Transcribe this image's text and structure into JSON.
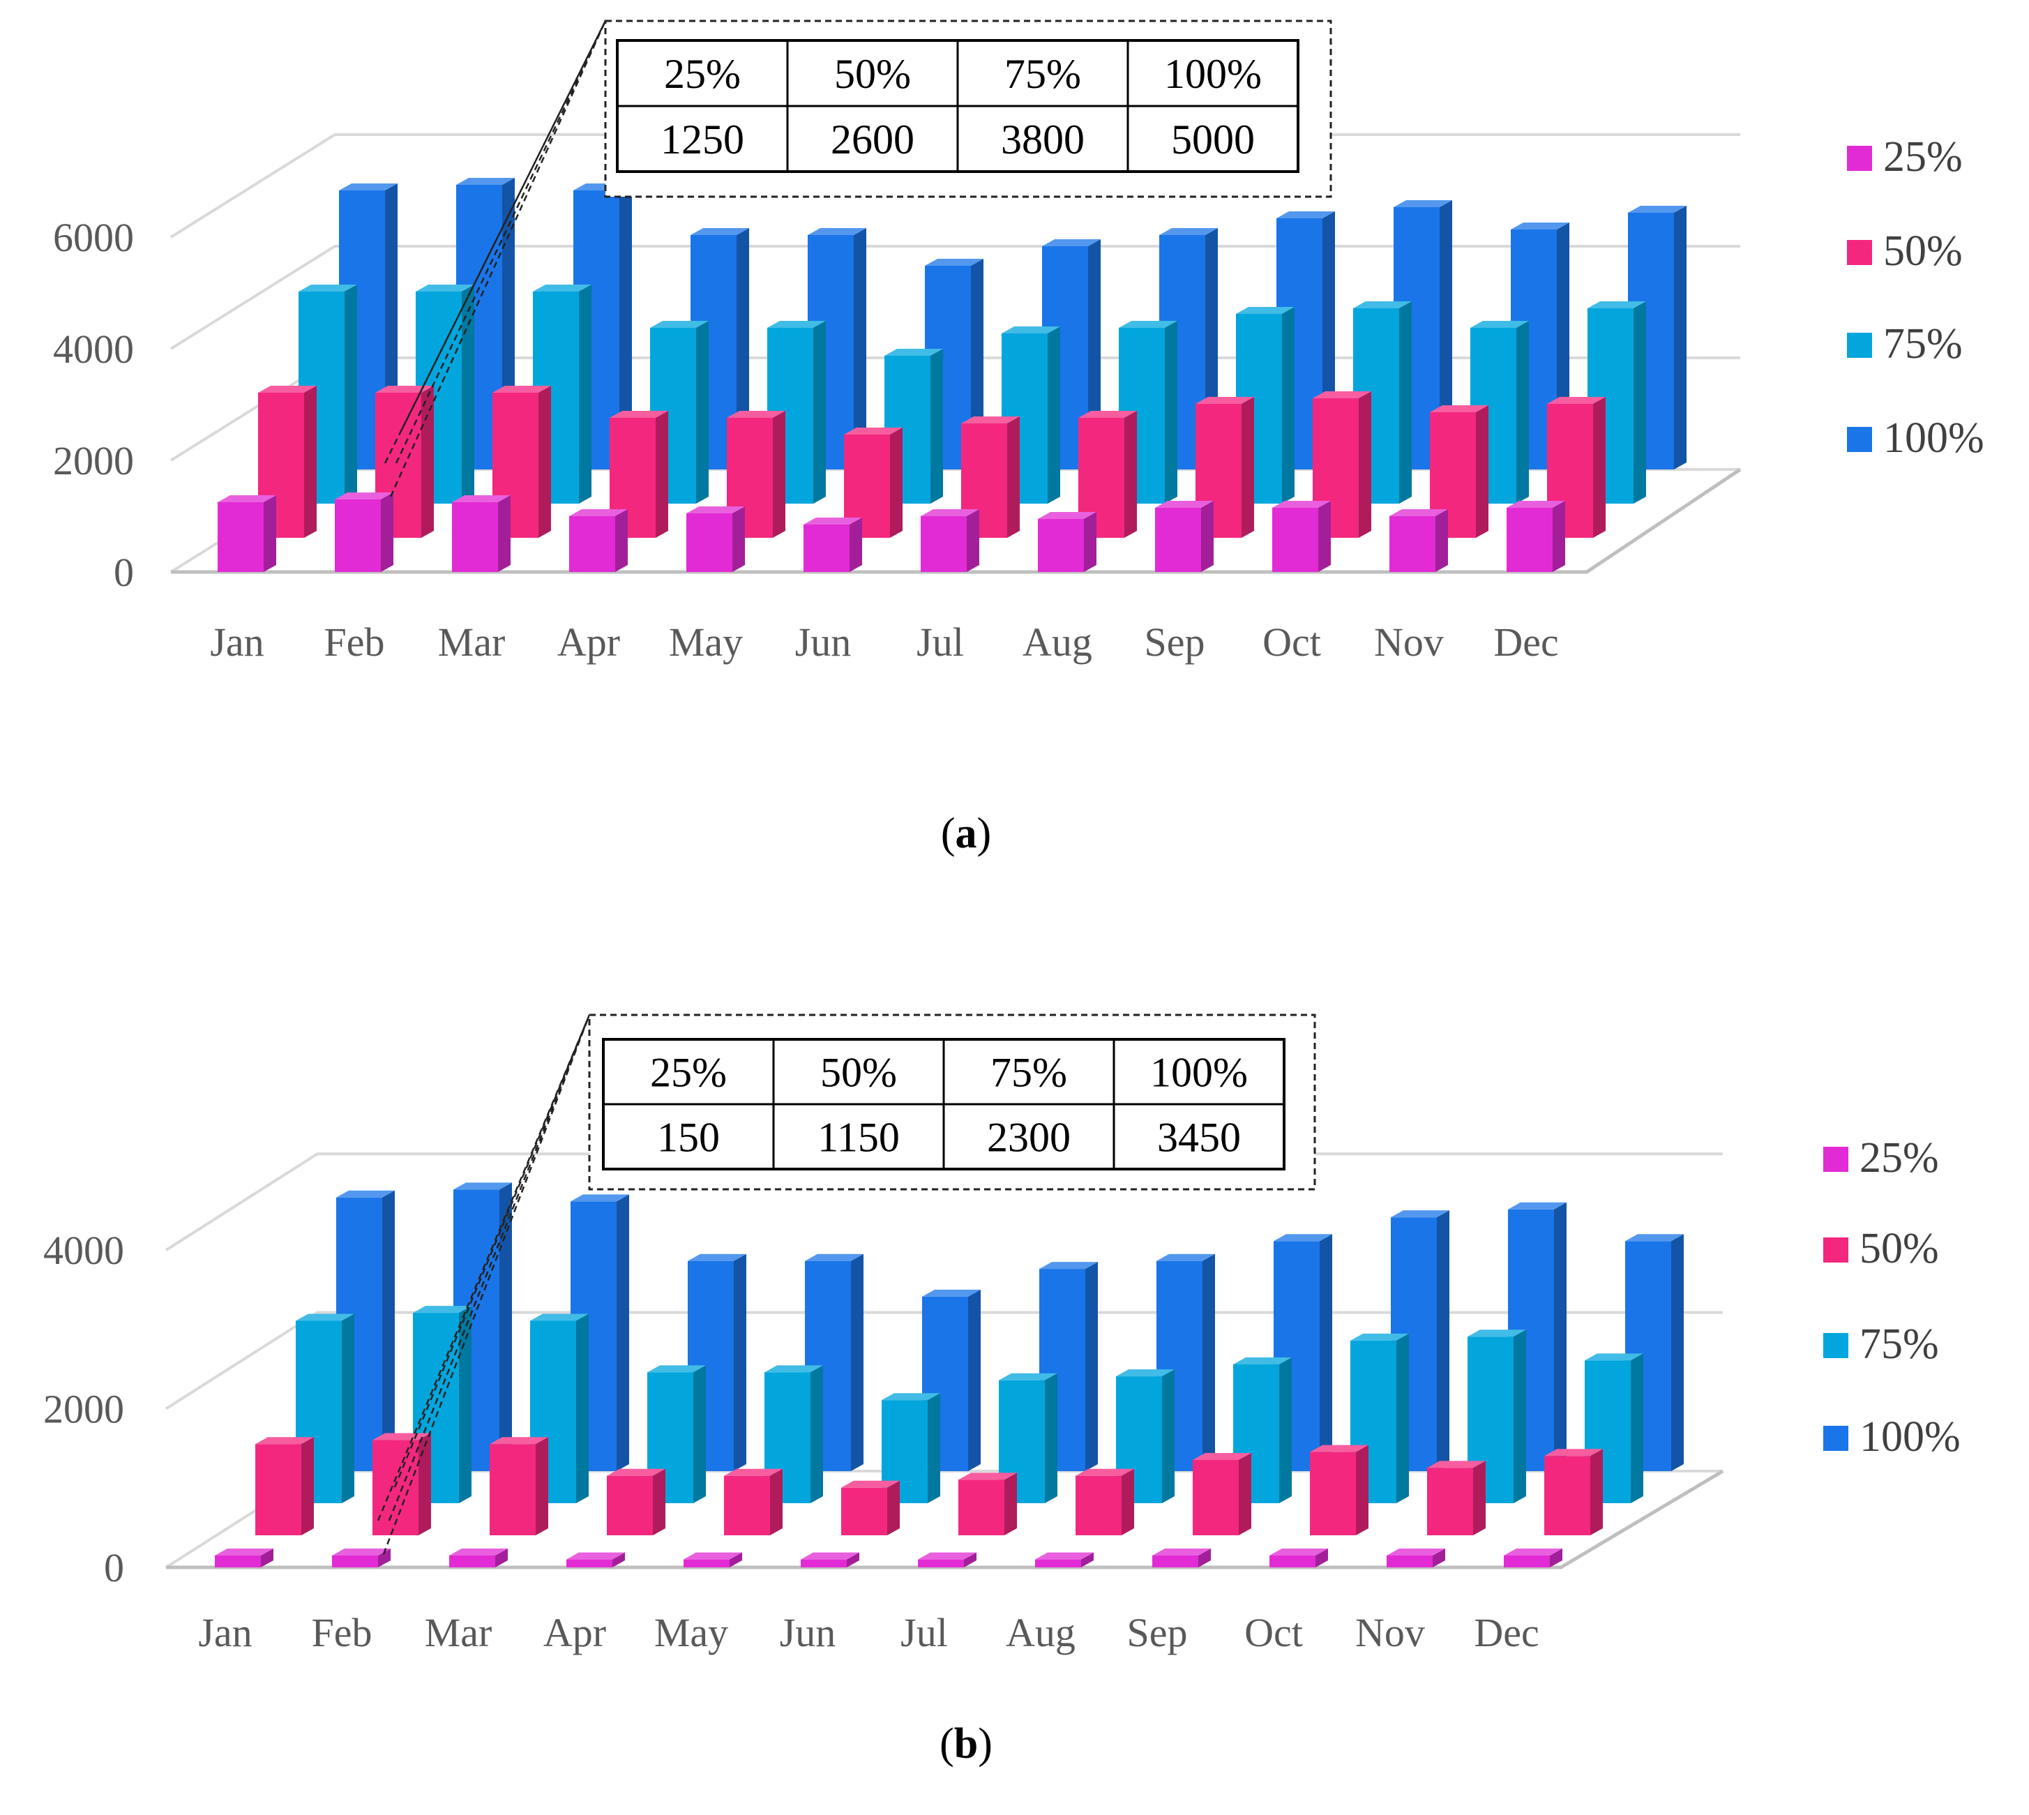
{
  "chart_data": [
    {
      "type": "bar",
      "panel_label": "(a)",
      "panel_letter": "a",
      "categories": [
        "Jan",
        "Feb",
        "Mar",
        "Apr",
        "May",
        "Jun",
        "Jul",
        "Aug",
        "Sep",
        "Oct",
        "Nov",
        "Dec"
      ],
      "ylim": [
        0,
        6000
      ],
      "yticks": [
        "0",
        "2000",
        "4000",
        "6000"
      ],
      "ytick_values": [
        0,
        2000,
        4000,
        6000
      ],
      "series": [
        {
          "name": "25%",
          "color": "#e22bd4",
          "values": [
            1250,
            1300,
            1250,
            1000,
            1050,
            850,
            1000,
            950,
            1150,
            1150,
            1000,
            1150
          ]
        },
        {
          "name": "50%",
          "color": "#f4277f",
          "values": [
            2600,
            2600,
            2600,
            2150,
            2150,
            1850,
            2050,
            2150,
            2400,
            2500,
            2250,
            2400
          ]
        },
        {
          "name": "75%",
          "color": "#02a6dd",
          "values": [
            3800,
            3800,
            3800,
            3150,
            3150,
            2650,
            3050,
            3150,
            3400,
            3500,
            3150,
            3500
          ]
        },
        {
          "name": "100%",
          "color": "#1a75e8",
          "values": [
            5000,
            5100,
            5000,
            4200,
            4200,
            3650,
            4000,
            4200,
            4500,
            4700,
            4300,
            4600
          ]
        }
      ],
      "callout": {
        "headers": [
          "25%",
          "50%",
          "75%",
          "100%"
        ],
        "values": [
          "1250",
          "2600",
          "3800",
          "5000"
        ]
      }
    },
    {
      "type": "bar",
      "panel_label": "(b)",
      "panel_letter": "b",
      "categories": [
        "Jan",
        "Feb",
        "Mar",
        "Apr",
        "May",
        "Jun",
        "Jul",
        "Aug",
        "Sep",
        "Oct",
        "Nov",
        "Dec"
      ],
      "ylim": [
        0,
        4000
      ],
      "yticks": [
        "0",
        "2000",
        "4000"
      ],
      "ytick_values": [
        0,
        2000,
        4000
      ],
      "series": [
        {
          "name": "25%",
          "color": "#e22bd4",
          "values": [
            150,
            150,
            150,
            100,
            100,
            100,
            100,
            100,
            150,
            150,
            150,
            150
          ]
        },
        {
          "name": "50%",
          "color": "#f4277f",
          "values": [
            1150,
            1200,
            1150,
            750,
            750,
            600,
            700,
            750,
            950,
            1050,
            850,
            1000
          ]
        },
        {
          "name": "75%",
          "color": "#02a6dd",
          "values": [
            2300,
            2400,
            2300,
            1650,
            1650,
            1300,
            1550,
            1600,
            1750,
            2050,
            2100,
            1800
          ]
        },
        {
          "name": "100%",
          "color": "#1a75e8",
          "values": [
            3450,
            3550,
            3400,
            2650,
            2650,
            2200,
            2550,
            2650,
            2900,
            3200,
            3300,
            2900
          ]
        }
      ],
      "callout": {
        "headers": [
          "25%",
          "50%",
          "75%",
          "100%"
        ],
        "values": [
          "150",
          "1150",
          "2300",
          "3450"
        ]
      }
    }
  ]
}
